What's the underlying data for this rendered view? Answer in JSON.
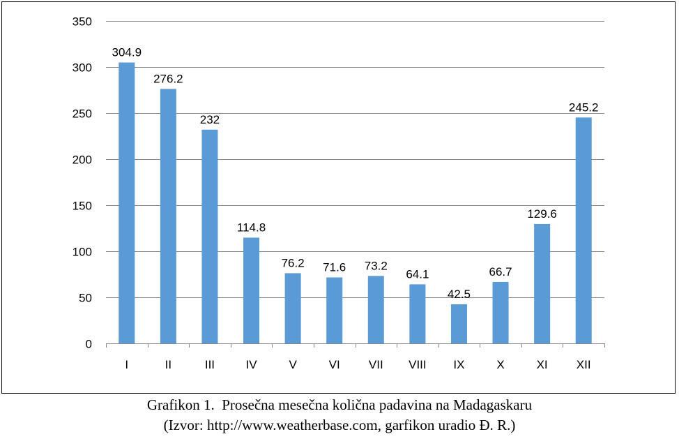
{
  "chart_data": {
    "type": "bar",
    "categories": [
      "I",
      "II",
      "III",
      "IV",
      "V",
      "VI",
      "VII",
      "VIII",
      "IX",
      "X",
      "XI",
      "XII"
    ],
    "values": [
      304.9,
      276.2,
      232,
      114.8,
      76.2,
      71.6,
      73.2,
      64.1,
      42.5,
      66.7,
      129.6,
      245.2
    ],
    "data_labels": [
      "304.9",
      "276.2",
      "232",
      "114.8",
      "76.2",
      "71.6",
      "73.2",
      "64.1",
      "42.5",
      "66.7",
      "129.6",
      "245.2"
    ],
    "yticks": [
      0,
      50,
      100,
      150,
      200,
      250,
      300,
      350
    ],
    "ylim": [
      0,
      350
    ],
    "grid": true,
    "legend": "none",
    "bar_color": "#5B9BD5",
    "grid_color": "#868686"
  },
  "caption": {
    "line1": "Grafikon 1.  Prosečna mesečna količna padavina na Madagaskaru",
    "line2": "(Izvor: http://www.weatherbase.com, garfikon uradio Đ. R.)"
  }
}
